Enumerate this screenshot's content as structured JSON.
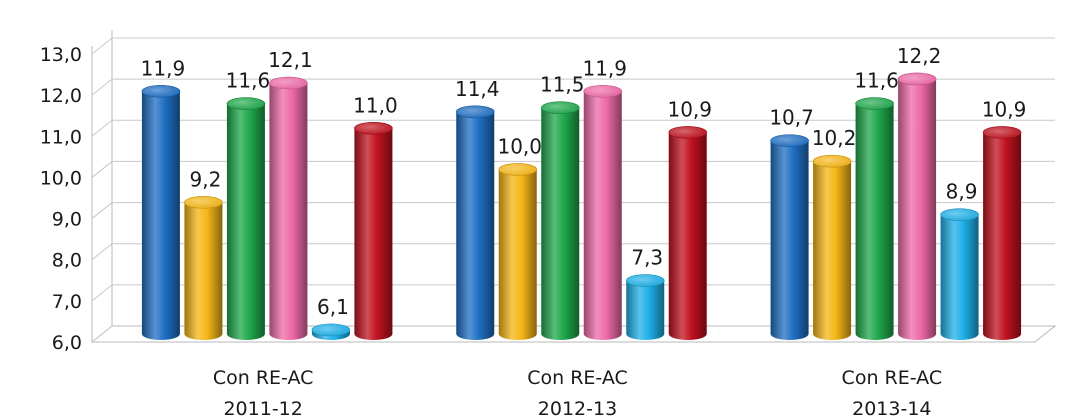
{
  "chart_data": {
    "type": "bar",
    "categories": [
      [
        "Con RE-AC",
        "2011-12"
      ],
      [
        "Con RE-AC",
        "2012-13"
      ],
      [
        "Con RE-AC",
        "2013-14"
      ]
    ],
    "series": [
      {
        "color": "#1f6fc3",
        "values": [
          11.9,
          11.4,
          10.7
        ]
      },
      {
        "color": "#f5b617",
        "values": [
          9.2,
          10.0,
          10.2
        ]
      },
      {
        "color": "#1fa74b",
        "values": [
          11.6,
          11.5,
          11.6
        ]
      },
      {
        "color": "#ee6aa7",
        "values": [
          12.1,
          11.9,
          12.2
        ]
      },
      {
        "color": "#1fb0e8",
        "values": [
          6.1,
          7.3,
          8.9
        ]
      },
      {
        "color": "#c0121f",
        "values": [
          11.0,
          10.9,
          10.9
        ]
      }
    ],
    "data_labels": [
      [
        "11,9",
        "9,2",
        "11,6",
        "12,1",
        "6,1",
        "11,0"
      ],
      [
        "11,4",
        "10,0",
        "11,5",
        "11,9",
        "7,3",
        "10,9"
      ],
      [
        "10,7",
        "10,2",
        "11,6",
        "12,2",
        "8,9",
        "10,9"
      ]
    ],
    "ylim": [
      6.0,
      13.0
    ],
    "yticks": [
      "6,0",
      "7,0",
      "8,0",
      "9,0",
      "10,0",
      "11,0",
      "12,0",
      "13,0"
    ],
    "grid": true,
    "legend": "none",
    "style": "3d-cylinder"
  }
}
